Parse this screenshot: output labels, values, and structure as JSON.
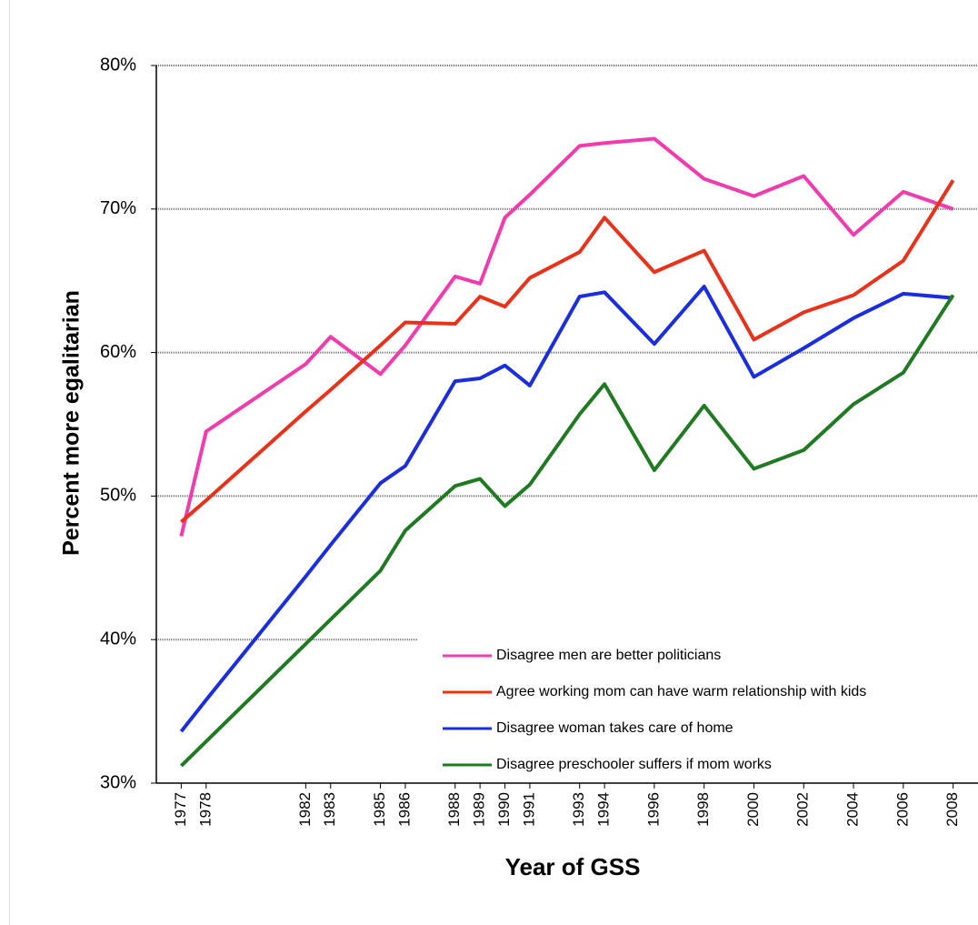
{
  "chart_data": {
    "type": "line",
    "x_label": "Year of GSS",
    "y_label": "Percent more egalitarian",
    "x": [
      1977,
      1978,
      1982,
      1983,
      1985,
      1986,
      1988,
      1989,
      1990,
      1991,
      1993,
      1994,
      1996,
      1998,
      2000,
      2002,
      2004,
      2006,
      2008
    ],
    "xlim": [
      1976,
      2009
    ],
    "ylim": [
      30,
      80
    ],
    "yticks": [
      {
        "value": 30,
        "label": "30%"
      },
      {
        "value": 40,
        "label": "40%"
      },
      {
        "value": 50,
        "label": "50%"
      },
      {
        "value": 60,
        "label": "60%"
      },
      {
        "value": 70,
        "label": "70%"
      },
      {
        "value": 80,
        "label": "80%"
      }
    ],
    "grid": true,
    "series": [
      {
        "name": "Disagree men are better politicians",
        "color": "#f03cac",
        "values": [
          47.2,
          54.5,
          59.2,
          61.1,
          58.5,
          60.5,
          65.3,
          64.8,
          69.4,
          71.0,
          74.4,
          74.6,
          74.9,
          72.1,
          70.9,
          72.3,
          68.2,
          71.2,
          70.0
        ]
      },
      {
        "name": "Agree working mom can have warm relationship with kids",
        "color": "#e8321a",
        "values": [
          48.2,
          49.7,
          55.9,
          57.4,
          60.5,
          62.1,
          62.0,
          63.9,
          63.2,
          65.2,
          67.0,
          69.4,
          65.6,
          67.1,
          60.9,
          62.8,
          64.0,
          66.4,
          72.0
        ]
      },
      {
        "name": "Disagree woman takes care of home",
        "color": "#1a2ee0",
        "values": [
          33.6,
          35.8,
          44.4,
          46.6,
          50.9,
          52.1,
          58.0,
          58.2,
          59.1,
          57.7,
          63.9,
          64.2,
          60.6,
          64.6,
          58.3,
          60.3,
          62.4,
          64.1,
          63.8
        ]
      },
      {
        "name": "Disagree preschooler suffers if mom works",
        "color": "#1f7a22",
        "values": [
          31.2,
          32.9,
          39.7,
          41.4,
          44.8,
          47.6,
          50.7,
          51.2,
          49.3,
          50.8,
          55.7,
          57.8,
          51.8,
          56.3,
          51.9,
          53.2,
          56.4,
          58.6,
          64.0
        ]
      }
    ]
  }
}
